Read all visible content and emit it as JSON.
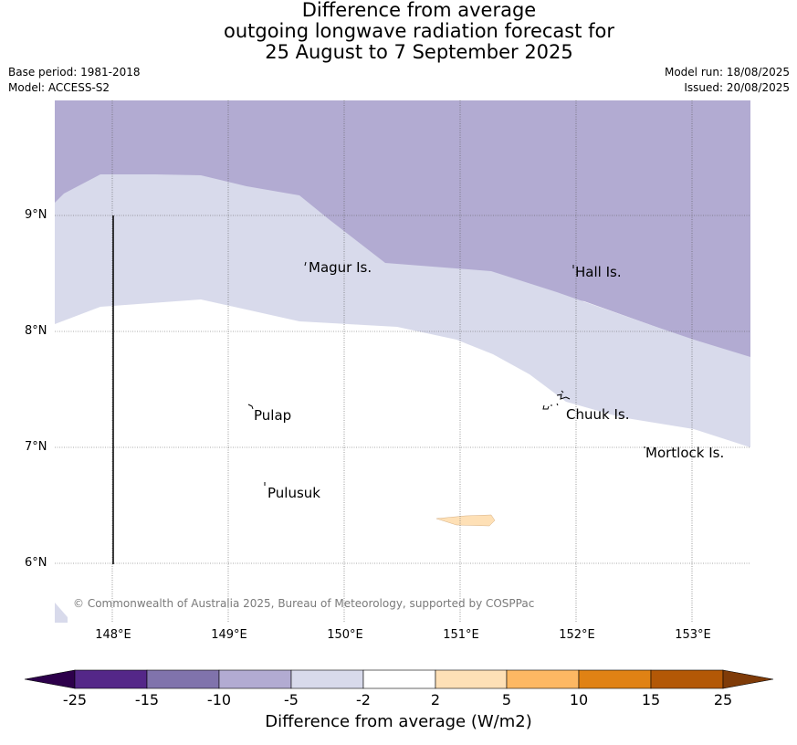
{
  "title": {
    "line1": "Difference from average",
    "line2": "outgoing longwave radiation forecast for",
    "line3": "25 August to 7 September 2025"
  },
  "meta": {
    "base_period": "Base period: 1981-2018",
    "model": "Model: ACCESS-S2",
    "model_run": "Model run: 18/08/2025",
    "issued": "Issued: 20/08/2025"
  },
  "axes": {
    "latitudes": [
      "9°N",
      "8°N",
      "7°N",
      "6°N"
    ],
    "longitudes": [
      "148°E",
      "149°E",
      "150°E",
      "151°E",
      "152°E",
      "153°E"
    ]
  },
  "places": {
    "magur": "Magur Is.",
    "hall": "Hall Is.",
    "pulap": "Pulap",
    "chuuk": "Chuuk Is.",
    "mortlock": "Mortlock Is.",
    "pulusuk": "Pulusuk"
  },
  "copyright": "© Commonwealth of Australia 2025, Bureau of Meteorology, supported by COSPPac",
  "colorbar": {
    "title": "Difference from average (W/m2)",
    "ticks": [
      "-25",
      "-15",
      "-10",
      "-5",
      "-2",
      "2",
      "5",
      "10",
      "15",
      "25"
    ],
    "colors": {
      "below_-25": "#2d004b",
      "-25_to_-15": "#542788",
      "-15_to_-10": "#8073ac",
      "-10_to_-5": "#b2abd2",
      "-5_to_-2": "#d8daeb",
      "-2_to_2": "#ffffff",
      "2_to_5": "#fee0b6",
      "5_to_10": "#fdb863",
      "10_to_15": "#e08214",
      "15_to_25": "#b35806",
      "above_25": "#7f3b08"
    }
  },
  "map_colors": {
    "band_-10_to_-5": "#b2abd2",
    "band_-5_to_-2": "#d8daeb",
    "band_2_to_5": "#fee0b6"
  }
}
